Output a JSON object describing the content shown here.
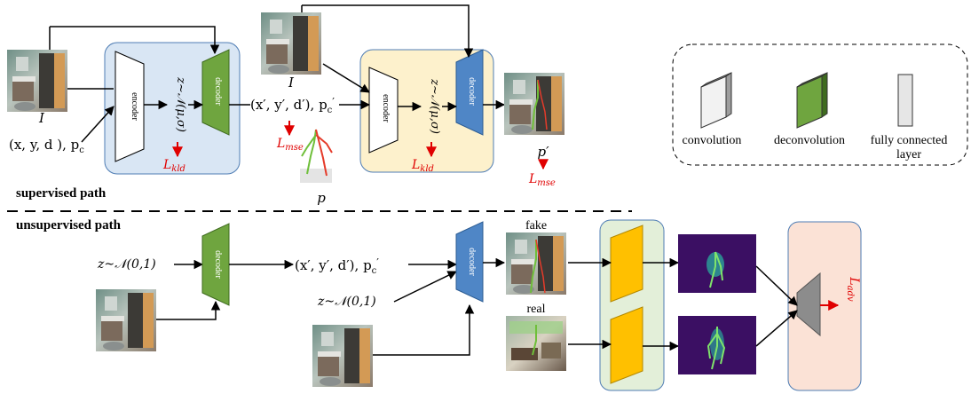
{
  "labels": {
    "image_I": "I",
    "image_I2": "I",
    "input_tuple": "(x, y, d ), p",
    "input_tuple_sub": "c",
    "encoder": "encoder",
    "decoder": "decoder",
    "latent": "z~𝒩(μ,σ)",
    "output_tuple": "(x′, y′, d′), p",
    "output_tuple_sub": "c",
    "output_tuple_prime": "′",
    "loss_kld_main": "L",
    "loss_kld_sub": "kld",
    "loss_mse_main": "L",
    "loss_mse_sub": "mse",
    "pose_p": "p",
    "pose_p_prime": "p′",
    "supervised": "supervised path",
    "unsupervised": "unsupervised path",
    "noise": "z~𝒩(0,1)",
    "fake": "fake",
    "real": "real",
    "loss_adv_main": "L",
    "loss_adv_sub": "adv"
  },
  "legend": {
    "convolution": "convolution",
    "deconvolution": "deconvolution",
    "fc_line1": "fully connected",
    "fc_line2": "layer"
  },
  "colors": {
    "vae_box_1": "#d9e6f4",
    "vae_box_2": "#fdf1cc",
    "disc_box": "#e3efd9",
    "adv_box": "#fbe2d6",
    "decoder_green": "#6fa53f",
    "decoder_blue": "#4f86c6",
    "disc_orange": "#ffc000",
    "loss_red": "#e00000",
    "heatmap": "#3b0f63"
  }
}
